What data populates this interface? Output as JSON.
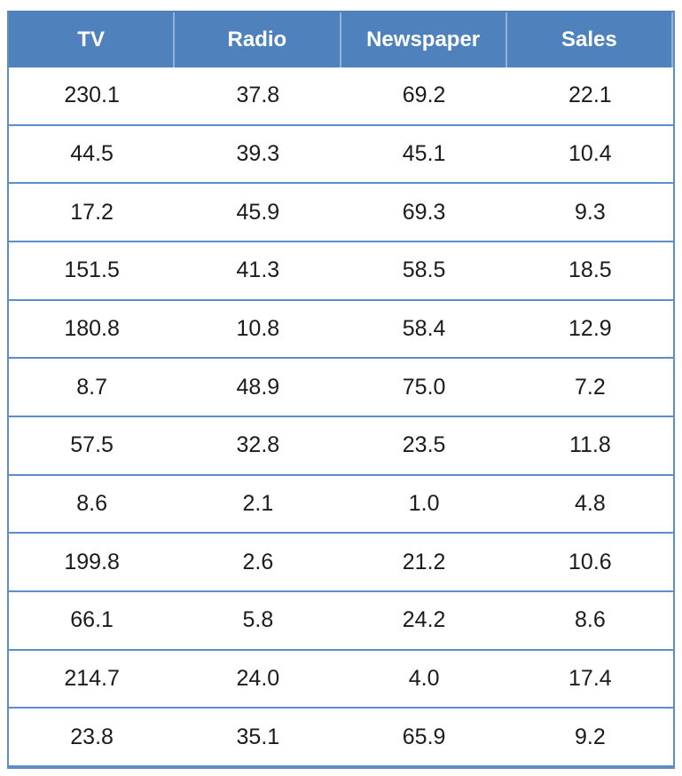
{
  "chart_data": {
    "type": "table",
    "title": "",
    "columns": [
      "TV",
      "Radio",
      "Newspaper",
      "Sales"
    ],
    "rows": [
      [
        "230.1",
        "37.8",
        "69.2",
        "22.1"
      ],
      [
        "44.5",
        "39.3",
        "45.1",
        "10.4"
      ],
      [
        "17.2",
        "45.9",
        "69.3",
        "9.3"
      ],
      [
        "151.5",
        "41.3",
        "58.5",
        "18.5"
      ],
      [
        "180.8",
        "10.8",
        "58.4",
        "12.9"
      ],
      [
        "8.7",
        "48.9",
        "75.0",
        "7.2"
      ],
      [
        "57.5",
        "32.8",
        "23.5",
        "11.8"
      ],
      [
        "8.6",
        "2.1",
        "1.0",
        "4.8"
      ],
      [
        "199.8",
        "2.6",
        "21.2",
        "10.6"
      ],
      [
        "66.1",
        "5.8",
        "24.2",
        "8.6"
      ],
      [
        "214.7",
        "24.0",
        "4.0",
        "17.4"
      ],
      [
        "23.8",
        "35.1",
        "65.9",
        "9.2"
      ]
    ],
    "layout": {
      "header_row": true,
      "gridlines": "horizontal-only",
      "column_count": 4,
      "row_count": 12
    },
    "colors": {
      "header_background": "#4f81bd",
      "header_text": "#ffffff",
      "border": "#5f8dc9",
      "cell_text": "#1b1b1b",
      "body_background": "#ffffff"
    }
  }
}
